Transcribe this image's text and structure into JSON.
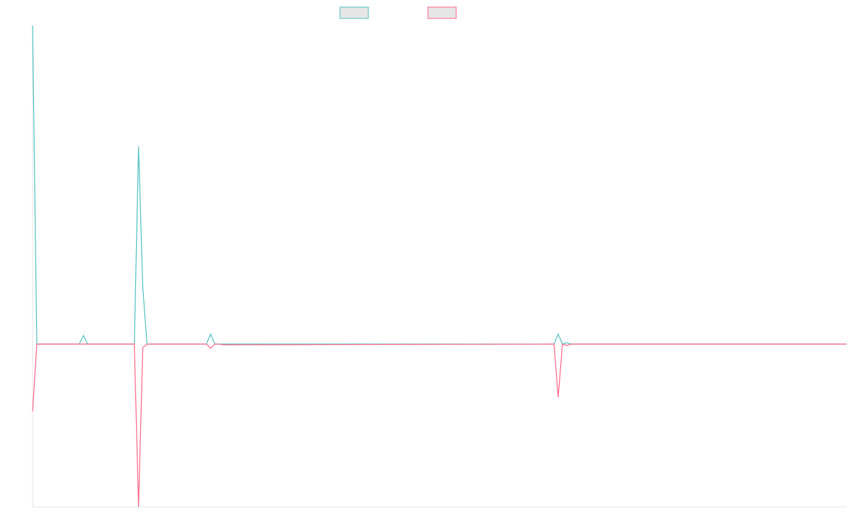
{
  "chart_data": {
    "type": "line",
    "x": [
      0,
      1,
      11,
      12,
      13,
      24,
      25,
      26,
      27,
      41,
      42,
      43,
      44,
      45,
      123,
      124,
      125,
      126,
      127,
      192
    ],
    "xlim": [
      0,
      192
    ],
    "ylim": [
      -230,
      450
    ],
    "series": [
      {
        "color": "#4bc0c0",
        "values": [
          450,
          0,
          0,
          12,
          0,
          0,
          279,
          80,
          0,
          0,
          14,
          0,
          0,
          0,
          0,
          14,
          0,
          2,
          0,
          0
        ]
      },
      {
        "color": "#ff6384",
        "values": [
          -95,
          0,
          0,
          0,
          0,
          0,
          -230,
          -5,
          0,
          0,
          -6,
          0,
          0,
          -1,
          0,
          -75,
          0,
          -2,
          0,
          0
        ]
      }
    ]
  }
}
